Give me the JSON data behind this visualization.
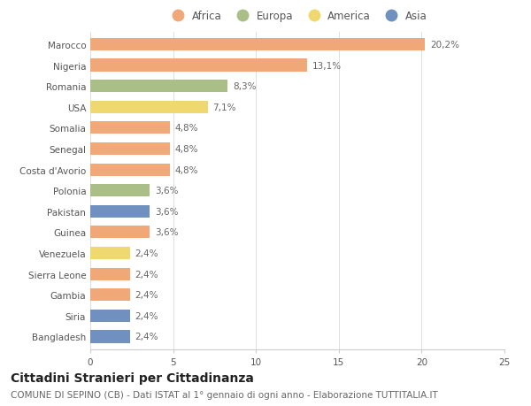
{
  "countries": [
    "Marocco",
    "Nigeria",
    "Romania",
    "USA",
    "Somalia",
    "Senegal",
    "Costa d'Avorio",
    "Polonia",
    "Pakistan",
    "Guinea",
    "Venezuela",
    "Sierra Leone",
    "Gambia",
    "Siria",
    "Bangladesh"
  ],
  "values": [
    20.2,
    13.1,
    8.3,
    7.1,
    4.8,
    4.8,
    4.8,
    3.6,
    3.6,
    3.6,
    2.4,
    2.4,
    2.4,
    2.4,
    2.4
  ],
  "labels": [
    "20,2%",
    "13,1%",
    "8,3%",
    "7,1%",
    "4,8%",
    "4,8%",
    "4,8%",
    "3,6%",
    "3,6%",
    "3,6%",
    "2,4%",
    "2,4%",
    "2,4%",
    "2,4%",
    "2,4%"
  ],
  "continents": [
    "Africa",
    "Africa",
    "Europa",
    "America",
    "Africa",
    "Africa",
    "Africa",
    "Europa",
    "Asia",
    "Africa",
    "America",
    "Africa",
    "Africa",
    "Asia",
    "Asia"
  ],
  "continent_colors": {
    "Africa": "#F0A878",
    "Europa": "#AABF88",
    "America": "#F0D870",
    "Asia": "#7090C0"
  },
  "legend_items": [
    "Africa",
    "Europa",
    "America",
    "Asia"
  ],
  "xlim": [
    0,
    25
  ],
  "xticks": [
    0,
    5,
    10,
    15,
    20,
    25
  ],
  "title": "Cittadini Stranieri per Cittadinanza",
  "subtitle": "COMUNE DI SEPINO (CB) - Dati ISTAT al 1° gennaio di ogni anno - Elaborazione TUTTITALIA.IT",
  "background_color": "#ffffff",
  "bar_height": 0.6,
  "title_fontsize": 10,
  "subtitle_fontsize": 7.5,
  "label_fontsize": 7.5,
  "tick_fontsize": 7.5,
  "legend_fontsize": 8.5
}
